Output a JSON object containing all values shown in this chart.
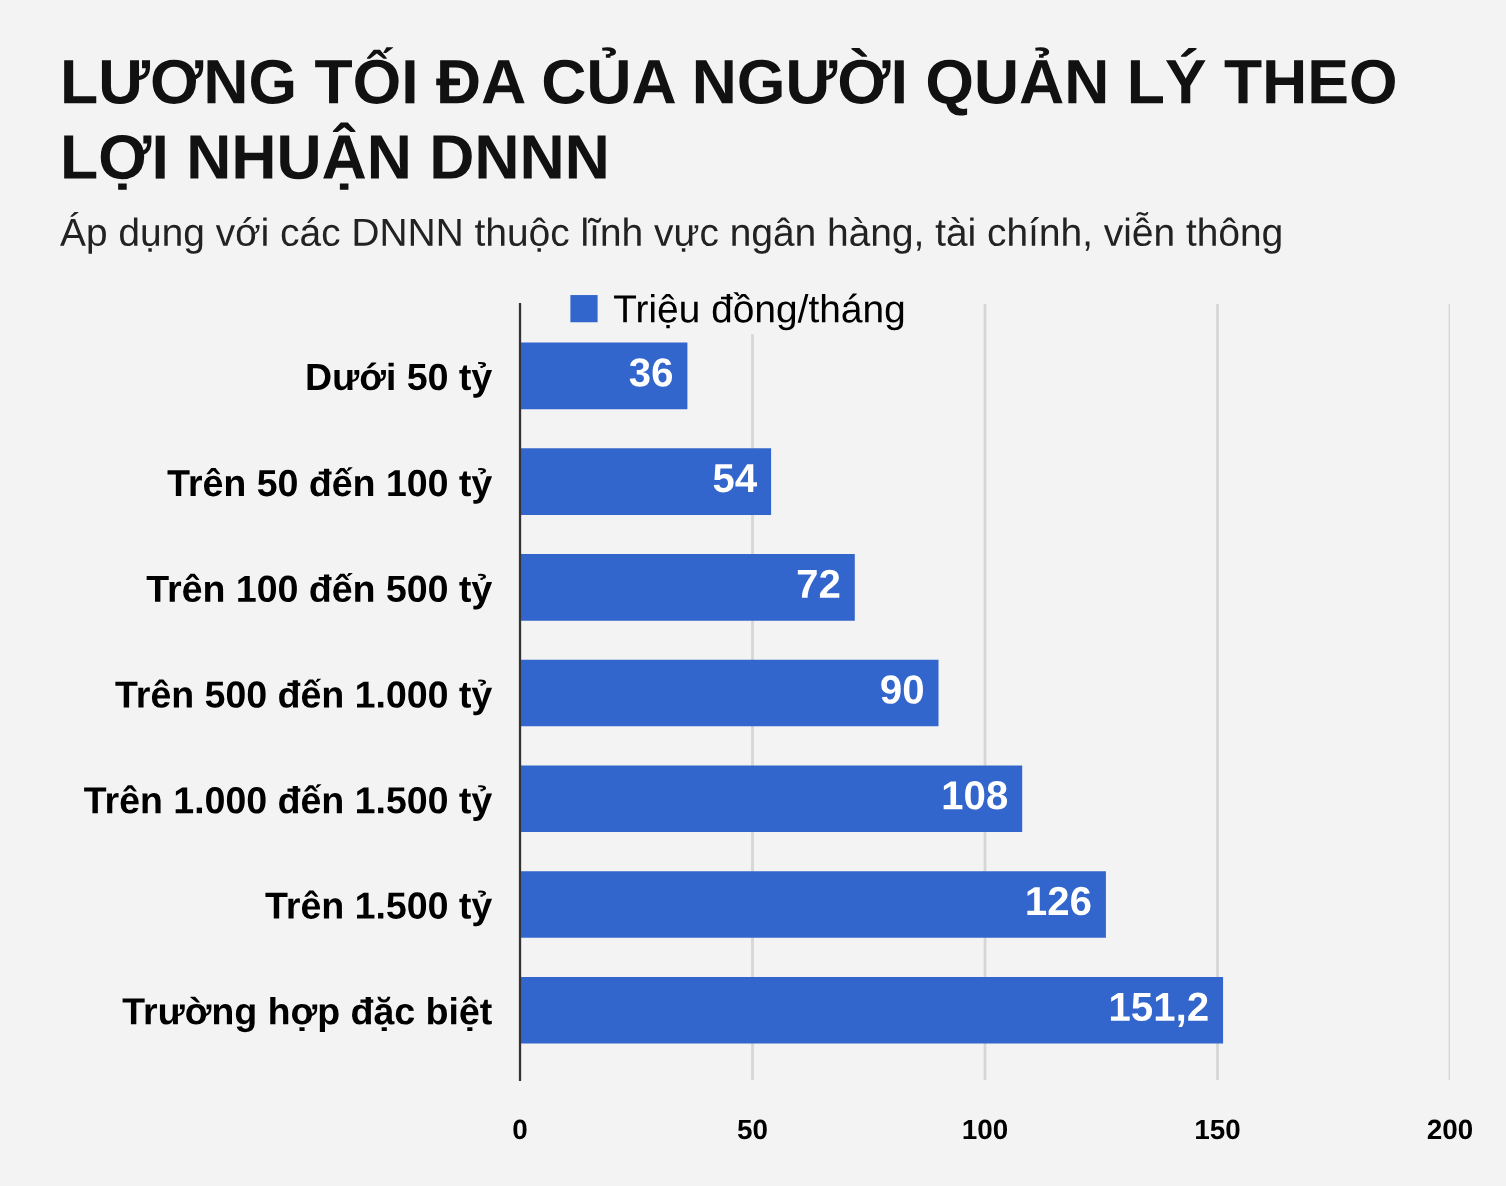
{
  "chart_data": {
    "type": "bar",
    "orientation": "horizontal",
    "title": "LƯƠNG TỐI ĐA CỦA NGƯỜI QUẢN LÝ THEO\nLỢI NHUẬN DNNN",
    "subtitle": "Áp dụng với các DNNN thuộc lĩnh vực ngân hàng, tài chính, viễn thông",
    "categories": [
      "Dưới 50 tỷ",
      "Trên 50 đến 100 tỷ",
      "Trên 100 đến 500 tỷ",
      "Trên 500 đến 1.000 tỷ",
      "Trên 1.000 đến 1.500 tỷ",
      "Trên 1.500 tỷ",
      "Trường hợp đặc biệt"
    ],
    "series": [
      {
        "name": "Triệu đồng/tháng",
        "color": "#3366cc",
        "values": [
          36,
          54,
          72,
          90,
          108,
          126,
          151.2
        ],
        "value_labels": [
          "36",
          "54",
          "72",
          "90",
          "108",
          "126",
          "151,2"
        ]
      }
    ],
    "xlim": [
      0,
      200
    ],
    "xticks": [
      0,
      50,
      100,
      150,
      200
    ],
    "grid": "x",
    "legend": "top"
  }
}
